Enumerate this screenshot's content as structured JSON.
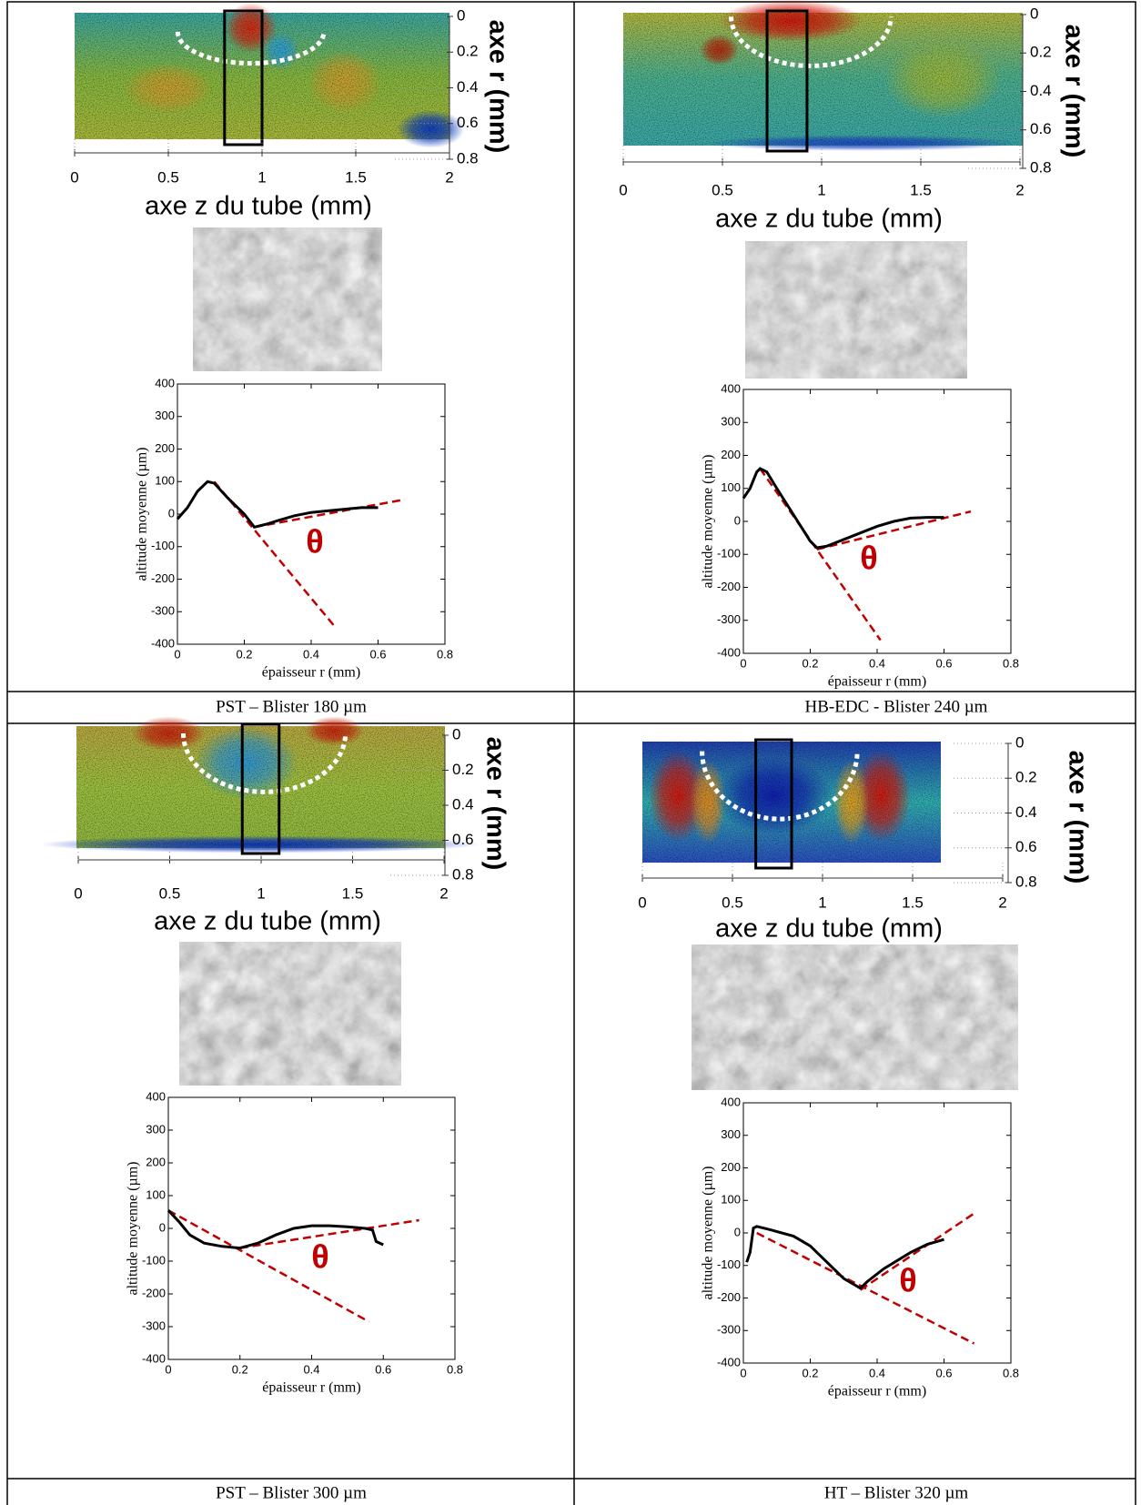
{
  "cells": [
    {
      "caption": "PST – Blister 180 µm",
      "surface_map": {
        "xlabel": "axe z du tube (mm)",
        "ylabel": "axe r (mm)",
        "xlim": [
          0,
          2
        ],
        "xticks": [
          0,
          0.5,
          1,
          1.5,
          2
        ],
        "ylim": [
          0,
          0.8
        ],
        "yticks": [
          0,
          0.2,
          0.4,
          0.6,
          0.8
        ]
      },
      "profile": {
        "type": "line",
        "xlabel": "épaisseur r (mm)",
        "ylabel": "altitude moyenne (µm)",
        "annotation": "θ",
        "xlim": [
          0,
          0.8
        ],
        "xticks": [
          0,
          0.2,
          0.4,
          0.6,
          0.8
        ],
        "ylim": [
          -400,
          400
        ],
        "yticks": [
          -400,
          -300,
          -200,
          -100,
          0,
          100,
          200,
          300,
          400
        ],
        "x": [
          0,
          0.03,
          0.06,
          0.09,
          0.11,
          0.15,
          0.2,
          0.23,
          0.27,
          0.3,
          0.35,
          0.4,
          0.45,
          0.5,
          0.55,
          0.6
        ],
        "series": [
          {
            "color": "#000000",
            "values": [
              -15,
              20,
              70,
              100,
              95,
              50,
              0,
              -40,
              -30,
              -20,
              -5,
              5,
              10,
              15,
              20,
              20
            ]
          }
        ],
        "fit_lines": [
          {
            "color": "#c00000",
            "x": [
              0.11,
              0.47
            ],
            "values": [
              100,
              -345
            ]
          },
          {
            "color": "#c00000",
            "x": [
              0.23,
              0.68
            ],
            "values": [
              -40,
              45
            ]
          }
        ]
      }
    },
    {
      "caption": "HB-EDC - Blister 240 µm",
      "surface_map": {
        "xlabel": "axe z du tube (mm)",
        "ylabel": "axe r (mm)",
        "xlim": [
          0,
          2
        ],
        "xticks": [
          0,
          0.5,
          1,
          1.5,
          2
        ],
        "ylim": [
          0,
          0.8
        ],
        "yticks": [
          0,
          0.2,
          0.4,
          0.6,
          0.8
        ]
      },
      "profile": {
        "type": "line",
        "xlabel": "épaisseur r (mm)",
        "ylabel": "altitude moyenne (µm)",
        "annotation": "θ",
        "xlim": [
          0,
          0.8
        ],
        "xticks": [
          0,
          0.2,
          0.4,
          0.6,
          0.8
        ],
        "ylim": [
          -400,
          400
        ],
        "yticks": [
          -400,
          -300,
          -200,
          -100,
          0,
          100,
          200,
          300,
          400
        ],
        "x": [
          0,
          0.02,
          0.04,
          0.05,
          0.07,
          0.1,
          0.15,
          0.2,
          0.22,
          0.25,
          0.3,
          0.35,
          0.4,
          0.45,
          0.5,
          0.55,
          0.6
        ],
        "series": [
          {
            "color": "#000000",
            "values": [
              70,
              100,
              150,
              160,
              150,
              100,
              20,
              -60,
              -80,
              -75,
              -55,
              -35,
              -15,
              0,
              10,
              12,
              12
            ]
          }
        ],
        "fit_lines": [
          {
            "color": "#c00000",
            "x": [
              0.05,
              0.41
            ],
            "values": [
              160,
              -360
            ]
          },
          {
            "color": "#c00000",
            "x": [
              0.22,
              0.68
            ],
            "values": [
              -85,
              30
            ]
          }
        ]
      }
    },
    {
      "caption": "PST – Blister 300 µm",
      "surface_map": {
        "xlabel": "axe z du tube (mm)",
        "ylabel": "axe r (mm)",
        "xlim": [
          0,
          2
        ],
        "xticks": [
          0,
          0.5,
          1,
          1.5,
          2
        ],
        "ylim": [
          0,
          0.8
        ],
        "yticks": [
          0,
          0.2,
          0.4,
          0.6,
          0.8
        ]
      },
      "profile": {
        "type": "line",
        "xlabel": "épaisseur r (mm)",
        "ylabel": "altitude moyenne (µm)",
        "annotation": "θ",
        "xlim": [
          0,
          0.8
        ],
        "xticks": [
          0,
          0.2,
          0.4,
          0.6,
          0.8
        ],
        "ylim": [
          -400,
          400
        ],
        "yticks": [
          -400,
          -300,
          -200,
          -100,
          0,
          100,
          200,
          300,
          400
        ],
        "x": [
          0,
          0.03,
          0.06,
          0.1,
          0.15,
          0.2,
          0.25,
          0.3,
          0.35,
          0.4,
          0.45,
          0.5,
          0.55,
          0.57,
          0.58,
          0.6
        ],
        "series": [
          {
            "color": "#000000",
            "values": [
              55,
              20,
              -20,
              -45,
              -55,
              -60,
              -45,
              -20,
              0,
              8,
              8,
              5,
              0,
              -5,
              -40,
              -50
            ]
          }
        ],
        "fit_lines": [
          {
            "color": "#c00000",
            "x": [
              0,
              0.56
            ],
            "values": [
              55,
              -285
            ]
          },
          {
            "color": "#c00000",
            "x": [
              0.2,
              0.7
            ],
            "values": [
              -60,
              25
            ]
          }
        ]
      }
    },
    {
      "caption": "HT – Blister 320 µm",
      "surface_map": {
        "xlabel": "axe z du tube (mm)",
        "ylabel": "axe r (mm)",
        "xlim": [
          0,
          2
        ],
        "xticks": [
          0,
          0.5,
          1,
          1.5,
          2
        ],
        "ylim": [
          0,
          0.8
        ],
        "yticks": [
          0,
          0.2,
          0.4,
          0.6,
          0.8
        ]
      },
      "profile": {
        "type": "line",
        "xlabel": "épaisseur r (mm)",
        "ylabel": "altitude moyenne (µm)",
        "annotation": "θ",
        "xlim": [
          0,
          0.8
        ],
        "xticks": [
          0,
          0.2,
          0.4,
          0.6,
          0.8
        ],
        "ylim": [
          -400,
          400
        ],
        "yticks": [
          -400,
          -300,
          -200,
          -100,
          0,
          100,
          200,
          300,
          400
        ],
        "x": [
          0.01,
          0.02,
          0.03,
          0.04,
          0.08,
          0.15,
          0.2,
          0.25,
          0.3,
          0.35,
          0.37,
          0.42,
          0.5,
          0.55,
          0.6
        ],
        "series": [
          {
            "color": "#000000",
            "values": [
              -90,
              -60,
              15,
              20,
              10,
              -10,
              -40,
              -90,
              -140,
              -170,
              -150,
              -110,
              -60,
              -35,
              -20
            ]
          }
        ],
        "fit_lines": [
          {
            "color": "#c00000",
            "x": [
              0.04,
              0.69
            ],
            "values": [
              0,
              -340
            ]
          },
          {
            "color": "#c00000",
            "x": [
              0.35,
              0.69
            ],
            "values": [
              -175,
              60
            ]
          }
        ]
      }
    }
  ]
}
